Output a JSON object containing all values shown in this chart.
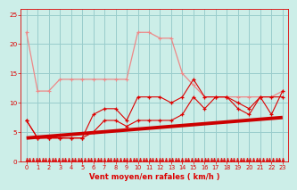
{
  "x": [
    0,
    1,
    2,
    3,
    4,
    5,
    6,
    7,
    8,
    9,
    10,
    11,
    12,
    13,
    14,
    15,
    16,
    17,
    18,
    19,
    20,
    21,
    22,
    23
  ],
  "wind_avg": [
    7,
    4,
    4,
    4,
    4,
    4,
    5,
    7,
    7,
    6,
    7,
    7,
    7,
    7,
    8,
    11,
    9,
    11,
    11,
    9,
    8,
    11,
    11,
    11
  ],
  "wind_gust": [
    7,
    4,
    4,
    4,
    4,
    4,
    8,
    9,
    9,
    7,
    11,
    11,
    11,
    10,
    11,
    14,
    11,
    11,
    11,
    10,
    9,
    11,
    8,
    12
  ],
  "wind_max": [
    22,
    12,
    12,
    14,
    14,
    14,
    14,
    14,
    14,
    14,
    22,
    22,
    21,
    21,
    15,
    13,
    11,
    11,
    11,
    11,
    11,
    11,
    11,
    12
  ],
  "trend_x": [
    0,
    23
  ],
  "trend_y": [
    4.0,
    7.5
  ],
  "background_color": "#cceee8",
  "grid_color": "#99cccc",
  "color_dark": "#dd0000",
  "color_pink": "#ee8888",
  "color_thick": "#cc0000",
  "xlabel": "Vent moyen/en rafales ( km/h )",
  "ylim": [
    0,
    26
  ],
  "xlim": [
    -0.5,
    23.5
  ],
  "yticks": [
    0,
    5,
    10,
    15,
    20,
    25
  ],
  "xticks": [
    0,
    1,
    2,
    3,
    4,
    5,
    6,
    7,
    8,
    9,
    10,
    11,
    12,
    13,
    14,
    15,
    16,
    17,
    18,
    19,
    20,
    21,
    22,
    23
  ]
}
